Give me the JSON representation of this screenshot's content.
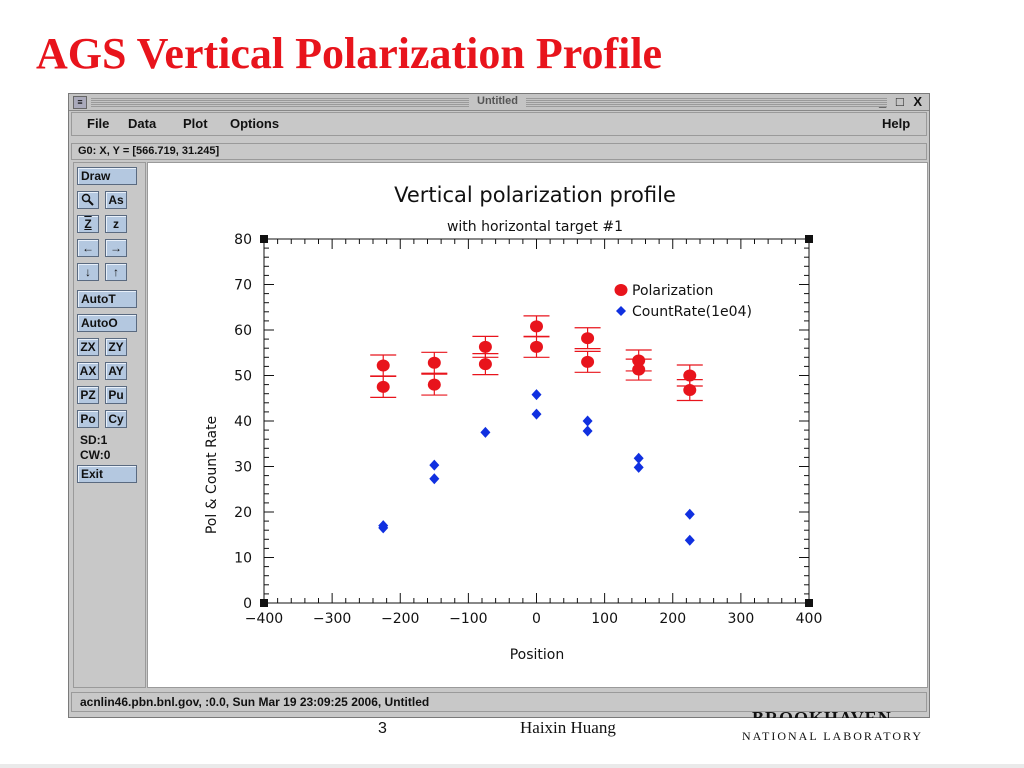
{
  "slide": {
    "title": "AGS Vertical Polarization Profile",
    "page_number": "3",
    "author": "Haixin Huang",
    "logo_top": "BROOKHAVEN",
    "logo_bottom": "NATIONAL LABORATORY"
  },
  "window": {
    "title": "Untitled",
    "controls": "_ □ X"
  },
  "menu": {
    "file": "File",
    "data": "Data",
    "plot": "Plot",
    "options": "Options",
    "help": "Help"
  },
  "coords": "G0: X, Y = [566.719, 31.245]",
  "toolbar": {
    "draw": "Draw",
    "zoom_icon": "magnifier-icon",
    "as": "As",
    "z_underline": "Z",
    "z": "z",
    "left_icon": "←",
    "right_icon": "→",
    "down_icon": "↓",
    "up_icon": "↑",
    "autot": "AutoT",
    "autoo": "AutoO",
    "zx": "ZX",
    "zy": "ZY",
    "ax": "AX",
    "ay": "AY",
    "pz": "PZ",
    "pu": "Pu",
    "po": "Po",
    "cy": "Cy",
    "sd": "SD:1",
    "cw": "CW:0",
    "exit": "Exit"
  },
  "status": "acnlin46.pbn.bnl.gov, :0.0, Sun Mar 19 23:09:25 2006, Untitled",
  "colors": {
    "title_red": "#e8141c",
    "polarization": "#e8141c",
    "countrate": "#1030e0",
    "button_blue": "#b4c8e0"
  },
  "chart_data": {
    "type": "scatter",
    "title": "Vertical polarization profile",
    "subtitle": "with horizontal target #1",
    "xlabel": "Position",
    "ylabel": "Pol & Count Rate",
    "xlim": [
      -400,
      400
    ],
    "ylim": [
      0,
      80
    ],
    "xticks": [
      -400,
      -300,
      -200,
      -100,
      0,
      100,
      200,
      300,
      400
    ],
    "yticks": [
      0,
      10,
      20,
      30,
      40,
      50,
      60,
      70,
      80
    ],
    "legend_position": "top-right",
    "series": [
      {
        "name": "Polarization",
        "marker": "circle",
        "points": [
          {
            "x": -225,
            "y": 52.2,
            "err": 2.3
          },
          {
            "x": -225,
            "y": 47.5,
            "err": 2.3
          },
          {
            "x": -150,
            "y": 52.8,
            "err": 2.3
          },
          {
            "x": -150,
            "y": 48.0,
            "err": 2.3
          },
          {
            "x": -75,
            "y": 56.3,
            "err": 2.3
          },
          {
            "x": -75,
            "y": 52.5,
            "err": 2.3
          },
          {
            "x": 0,
            "y": 60.8,
            "err": 2.3
          },
          {
            "x": 0,
            "y": 56.3,
            "err": 2.3
          },
          {
            "x": 75,
            "y": 58.2,
            "err": 2.3
          },
          {
            "x": 75,
            "y": 53.0,
            "err": 2.3
          },
          {
            "x": 150,
            "y": 53.3,
            "err": 2.3
          },
          {
            "x": 150,
            "y": 51.3,
            "err": 2.3
          },
          {
            "x": 225,
            "y": 50.0,
            "err": 2.3
          },
          {
            "x": 225,
            "y": 46.8,
            "err": 2.3
          }
        ]
      },
      {
        "name": "CountRate(1e04)",
        "marker": "diamond",
        "points": [
          {
            "x": -225,
            "y": 17.0
          },
          {
            "x": -225,
            "y": 16.5
          },
          {
            "x": -150,
            "y": 30.3
          },
          {
            "x": -150,
            "y": 27.3
          },
          {
            "x": -75,
            "y": 37.5
          },
          {
            "x": 0,
            "y": 45.8
          },
          {
            "x": 0,
            "y": 41.5
          },
          {
            "x": 75,
            "y": 40.0
          },
          {
            "x": 75,
            "y": 37.8
          },
          {
            "x": 150,
            "y": 31.8
          },
          {
            "x": 150,
            "y": 29.8
          },
          {
            "x": 225,
            "y": 19.5
          },
          {
            "x": 225,
            "y": 13.8
          }
        ]
      }
    ]
  }
}
